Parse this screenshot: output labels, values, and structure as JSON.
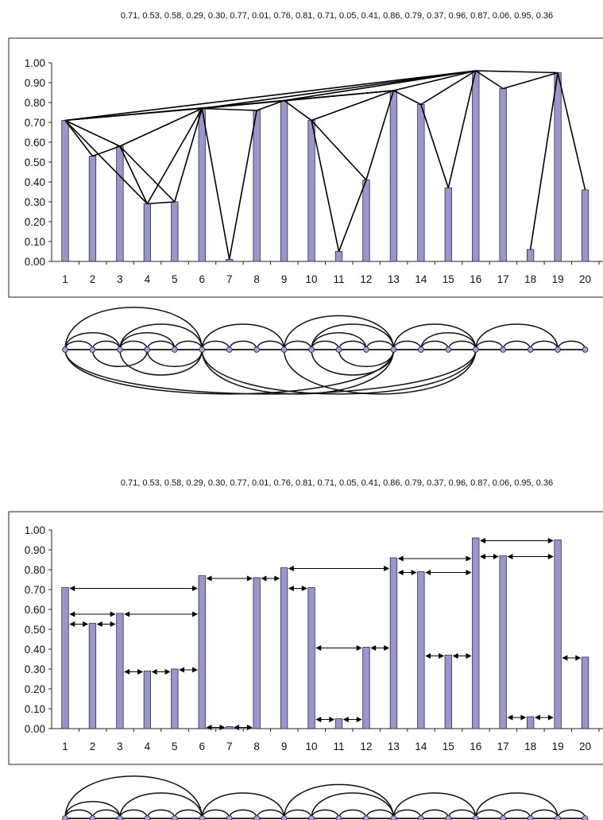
{
  "sequence_label": "0.71, 0.53, 0.58, 0.29, 0.30, 0.77, 0.01, 0.76, 0.81, 0.71, 0.05, 0.41, 0.86, 0.79, 0.37, 0.96, 0.87, 0.06, 0.95, 0.36",
  "chart_data": [
    {
      "type": "bar",
      "title": "",
      "xlabel": "",
      "ylabel": "",
      "categories": [
        "1",
        "2",
        "3",
        "4",
        "5",
        "6",
        "7",
        "8",
        "9",
        "10",
        "11",
        "12",
        "13",
        "14",
        "15",
        "16",
        "17",
        "18",
        "19",
        "20"
      ],
      "values": [
        0.71,
        0.53,
        0.58,
        0.29,
        0.3,
        0.77,
        0.01,
        0.76,
        0.81,
        0.71,
        0.05,
        0.41,
        0.86,
        0.79,
        0.37,
        0.96,
        0.87,
        0.06,
        0.95,
        0.36
      ],
      "ylim": [
        0,
        1
      ],
      "yticks": [
        "0.00",
        "0.10",
        "0.20",
        "0.30",
        "0.40",
        "0.50",
        "0.60",
        "0.70",
        "0.80",
        "0.90",
        "1.00"
      ],
      "grid": false,
      "overlay": "natural visibility graph edges between bar tops",
      "edges": [
        [
          1,
          2
        ],
        [
          1,
          3
        ],
        [
          1,
          4
        ],
        [
          1,
          6
        ],
        [
          1,
          13
        ],
        [
          1,
          16
        ],
        [
          2,
          3
        ],
        [
          3,
          4
        ],
        [
          3,
          5
        ],
        [
          3,
          6
        ],
        [
          4,
          5
        ],
        [
          4,
          6
        ],
        [
          5,
          6
        ],
        [
          6,
          7
        ],
        [
          6,
          8
        ],
        [
          6,
          9
        ],
        [
          6,
          13
        ],
        [
          6,
          16
        ],
        [
          7,
          8
        ],
        [
          8,
          9
        ],
        [
          9,
          10
        ],
        [
          9,
          13
        ],
        [
          9,
          16
        ],
        [
          10,
          11
        ],
        [
          10,
          12
        ],
        [
          10,
          13
        ],
        [
          11,
          12
        ],
        [
          12,
          13
        ],
        [
          13,
          14
        ],
        [
          13,
          16
        ],
        [
          14,
          15
        ],
        [
          14,
          16
        ],
        [
          15,
          16
        ],
        [
          16,
          17
        ],
        [
          16,
          19
        ],
        [
          17,
          19
        ],
        [
          18,
          19
        ],
        [
          19,
          20
        ]
      ]
    },
    {
      "type": "bar",
      "title": "",
      "xlabel": "",
      "ylabel": "",
      "categories": [
        "1",
        "2",
        "3",
        "4",
        "5",
        "6",
        "7",
        "8",
        "9",
        "10",
        "11",
        "12",
        "13",
        "14",
        "15",
        "16",
        "17",
        "18",
        "19",
        "20"
      ],
      "values": [
        0.71,
        0.53,
        0.58,
        0.29,
        0.3,
        0.77,
        0.01,
        0.76,
        0.81,
        0.71,
        0.05,
        0.41,
        0.86,
        0.79,
        0.37,
        0.96,
        0.87,
        0.06,
        0.95,
        0.36
      ],
      "ylim": [
        0,
        1
      ],
      "yticks": [
        "0.00",
        "0.10",
        "0.20",
        "0.30",
        "0.40",
        "0.50",
        "0.60",
        "0.70",
        "0.80",
        "0.90",
        "1.00"
      ],
      "grid": false,
      "overlay": "horizontal visibility graph edges as double-headed arrows",
      "edges": [
        [
          1,
          2
        ],
        [
          1,
          3
        ],
        [
          1,
          6
        ],
        [
          2,
          3
        ],
        [
          3,
          4
        ],
        [
          3,
          6
        ],
        [
          4,
          5
        ],
        [
          5,
          6
        ],
        [
          6,
          7
        ],
        [
          6,
          8
        ],
        [
          7,
          8
        ],
        [
          8,
          9
        ],
        [
          9,
          10
        ],
        [
          9,
          13
        ],
        [
          10,
          11
        ],
        [
          10,
          12
        ],
        [
          11,
          12
        ],
        [
          12,
          13
        ],
        [
          13,
          14
        ],
        [
          13,
          16
        ],
        [
          14,
          15
        ],
        [
          14,
          16
        ],
        [
          15,
          16
        ],
        [
          16,
          17
        ],
        [
          16,
          19
        ],
        [
          17,
          18
        ],
        [
          17,
          19
        ],
        [
          18,
          19
        ],
        [
          19,
          20
        ]
      ]
    }
  ],
  "arc_diagrams": [
    {
      "nodes": 20,
      "arcs_above": [
        [
          1,
          6
        ],
        [
          1,
          3
        ],
        [
          3,
          6
        ],
        [
          1,
          2
        ],
        [
          2,
          3
        ],
        [
          3,
          4
        ],
        [
          3,
          5
        ],
        [
          4,
          5
        ],
        [
          5,
          6
        ],
        [
          6,
          9
        ],
        [
          6,
          7
        ],
        [
          7,
          8
        ],
        [
          8,
          9
        ],
        [
          9,
          13
        ],
        [
          10,
          13
        ],
        [
          10,
          12
        ],
        [
          9,
          10
        ],
        [
          10,
          11
        ],
        [
          11,
          12
        ],
        [
          12,
          13
        ],
        [
          13,
          16
        ],
        [
          14,
          16
        ],
        [
          13,
          14
        ],
        [
          14,
          15
        ],
        [
          15,
          16
        ],
        [
          16,
          19
        ],
        [
          16,
          17
        ],
        [
          17,
          18
        ],
        [
          18,
          19
        ],
        [
          19,
          20
        ]
      ],
      "arcs_below": [
        [
          1,
          16
        ],
        [
          1,
          13
        ],
        [
          2,
          4
        ],
        [
          3,
          6
        ],
        [
          4,
          6
        ],
        [
          6,
          16
        ],
        [
          6,
          13
        ],
        [
          9,
          16
        ],
        [
          10,
          13
        ],
        [
          11,
          13
        ]
      ]
    },
    {
      "nodes": 20,
      "arcs_above": [
        [
          1,
          6
        ],
        [
          1,
          3
        ],
        [
          3,
          6
        ],
        [
          1,
          2
        ],
        [
          2,
          3
        ],
        [
          3,
          4
        ],
        [
          4,
          5
        ],
        [
          5,
          6
        ],
        [
          6,
          9
        ],
        [
          6,
          7
        ],
        [
          7,
          8
        ],
        [
          8,
          9
        ],
        [
          9,
          13
        ],
        [
          10,
          13
        ],
        [
          9,
          10
        ],
        [
          10,
          11
        ],
        [
          11,
          12
        ],
        [
          12,
          13
        ],
        [
          13,
          16
        ],
        [
          13,
          14
        ],
        [
          14,
          15
        ],
        [
          15,
          16
        ],
        [
          16,
          19
        ],
        [
          16,
          17
        ],
        [
          17,
          18
        ],
        [
          18,
          19
        ],
        [
          19,
          20
        ]
      ],
      "arcs_below": []
    }
  ]
}
